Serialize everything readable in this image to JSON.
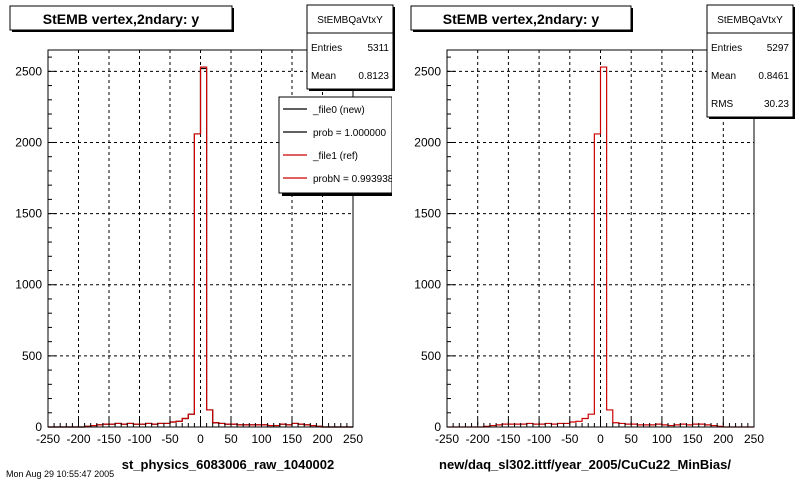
{
  "panels": [
    {
      "title": "StEMB  vertex,2ndary: y",
      "xlabel": "st_physics_6083006_raw_1040002",
      "stats": {
        "name": "StEMBQaVtxY",
        "rows": [
          {
            "label": "Entries",
            "value": "5311"
          },
          {
            "label": "Mean",
            "value": "0.8123"
          }
        ]
      },
      "legend": [
        {
          "text": "_file0 (new)",
          "color": "#000000"
        },
        {
          "text": "prob = 1.000000",
          "color": "#000000"
        },
        {
          "text": "_file1 (ref)",
          "color": "#cc0000"
        },
        {
          "text": "probN = 0.993938",
          "color": "#cc0000"
        }
      ]
    },
    {
      "title": "StEMB  vertex,2ndary: y",
      "xlabel": "new/daq_sl302.ittf/year_2005/CuCu22_MinBias/",
      "stats": {
        "name": "StEMBQaVtxY",
        "rows": [
          {
            "label": "Entries",
            "value": "5297"
          },
          {
            "label": "Mean",
            "value": "0.8461"
          },
          {
            "label": "RMS",
            "value": "30.23"
          }
        ]
      },
      "legend": []
    }
  ],
  "footer_text": "Mon Aug 29 10:55:47 2005",
  "chart_data": [
    {
      "type": "bar",
      "title": "StEMB  vertex,2ndary: y",
      "xlabel": "st_physics_6083006_raw_1040002",
      "xlim": [
        -250,
        250
      ],
      "ylim": [
        0,
        2650
      ],
      "xticks": [
        "-250",
        "-200",
        "-150",
        "-100",
        "-50",
        "0",
        "50",
        "100",
        "150",
        "200",
        "250"
      ],
      "yticks": [
        "0",
        "500",
        "1000",
        "1500",
        "2000",
        "2500"
      ],
      "grid": true,
      "bin_width": 10,
      "bin_starts": [
        -250,
        -240,
        -230,
        -220,
        -210,
        -200,
        -190,
        -180,
        -170,
        -160,
        -150,
        -140,
        -130,
        -120,
        -110,
        -100,
        -90,
        -80,
        -70,
        -60,
        -50,
        -40,
        -30,
        -20,
        -10,
        0,
        10,
        20,
        30,
        40,
        50,
        60,
        70,
        80,
        90,
        100,
        110,
        120,
        130,
        140,
        150,
        160,
        170,
        180,
        190,
        200,
        210,
        220,
        230,
        240
      ],
      "series": [
        {
          "name": "_file0 (new)",
          "color": "#000000",
          "values": [
            0,
            0,
            0,
            0,
            0,
            0,
            5,
            10,
            15,
            20,
            20,
            25,
            20,
            25,
            20,
            20,
            25,
            20,
            25,
            25,
            35,
            40,
            60,
            90,
            2060,
            2520,
            120,
            30,
            25,
            20,
            20,
            15,
            15,
            15,
            15,
            15,
            10,
            10,
            20,
            15,
            25,
            20,
            15,
            10,
            5,
            0,
            0,
            0,
            0,
            0
          ]
        },
        {
          "name": "_file1 (ref)",
          "color": "#cc0000",
          "values": [
            0,
            0,
            0,
            0,
            0,
            0,
            5,
            10,
            15,
            20,
            20,
            25,
            20,
            25,
            20,
            20,
            25,
            20,
            25,
            25,
            35,
            40,
            60,
            90,
            2060,
            2530,
            120,
            30,
            25,
            20,
            20,
            15,
            15,
            15,
            15,
            15,
            10,
            10,
            20,
            15,
            25,
            20,
            15,
            10,
            5,
            0,
            0,
            0,
            0,
            0
          ]
        }
      ]
    },
    {
      "type": "bar",
      "title": "StEMB  vertex,2ndary: y",
      "xlabel": "new/daq_sl302.ittf/year_2005/CuCu22_MinBias/",
      "xlim": [
        -250,
        250
      ],
      "ylim": [
        0,
        2650
      ],
      "xticks": [
        "-250",
        "-200",
        "-150",
        "-100",
        "-50",
        "0",
        "50",
        "100",
        "150",
        "200",
        "250"
      ],
      "yticks": [
        "0",
        "500",
        "1000",
        "1500",
        "2000",
        "2500"
      ],
      "grid": true,
      "bin_width": 10,
      "bin_starts": [
        -250,
        -240,
        -230,
        -220,
        -210,
        -200,
        -190,
        -180,
        -170,
        -160,
        -150,
        -140,
        -130,
        -120,
        -110,
        -100,
        -90,
        -80,
        -70,
        -60,
        -50,
        -40,
        -30,
        -20,
        -10,
        0,
        10,
        20,
        30,
        40,
        50,
        60,
        70,
        80,
        90,
        100,
        110,
        120,
        130,
        140,
        150,
        160,
        170,
        180,
        190,
        200,
        210,
        220,
        230,
        240
      ],
      "series": [
        {
          "name": "",
          "color": "#cc0000",
          "values": [
            0,
            0,
            0,
            0,
            0,
            0,
            5,
            10,
            15,
            20,
            20,
            20,
            20,
            25,
            20,
            20,
            25,
            20,
            25,
            25,
            35,
            40,
            60,
            90,
            2060,
            2530,
            120,
            30,
            25,
            20,
            20,
            15,
            15,
            15,
            20,
            15,
            10,
            15,
            20,
            15,
            20,
            20,
            15,
            10,
            5,
            0,
            0,
            0,
            0,
            0
          ]
        }
      ]
    }
  ]
}
